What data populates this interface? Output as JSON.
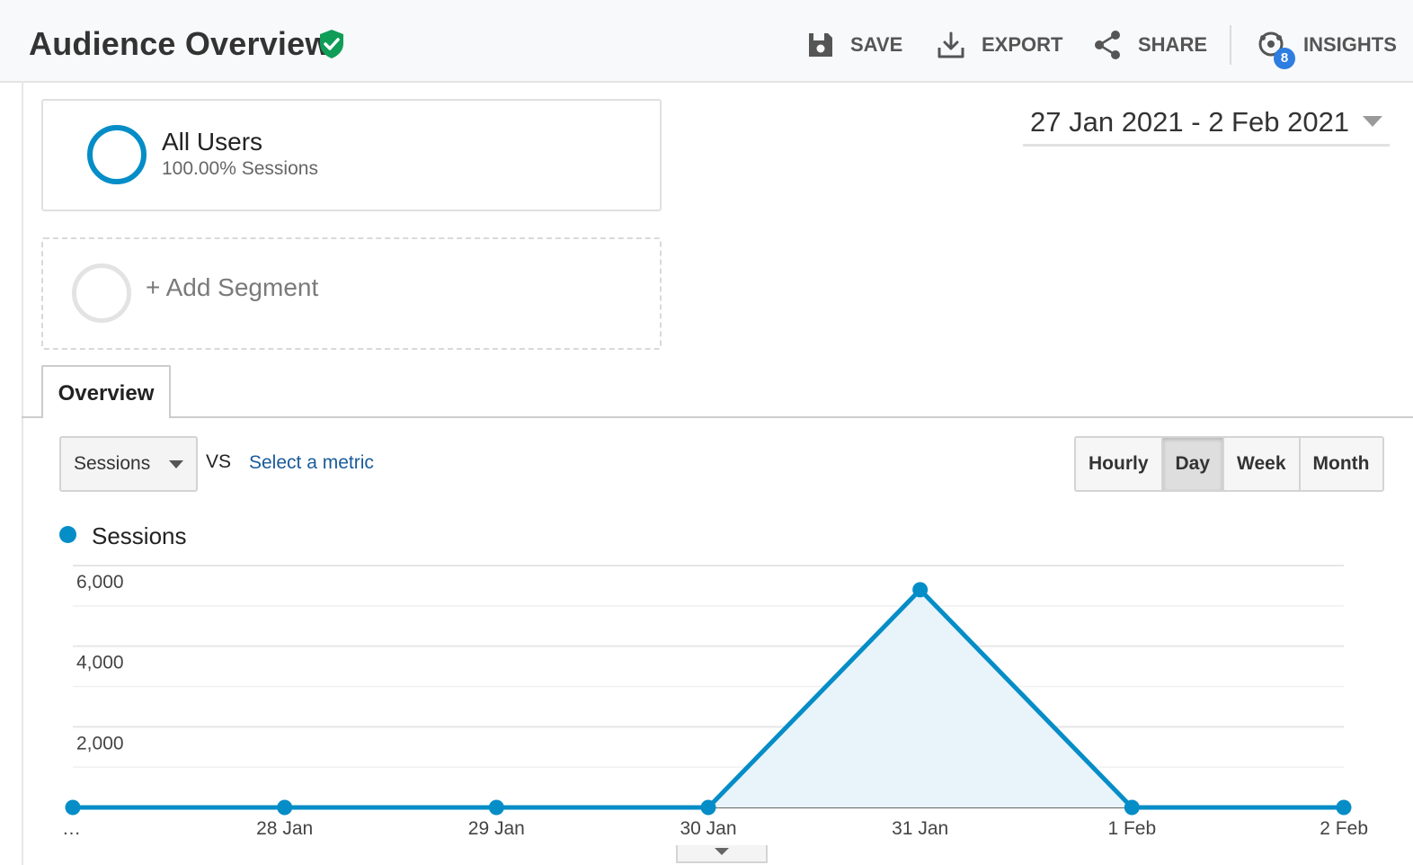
{
  "header": {
    "title": "Audience Overview",
    "actions": [
      {
        "label": "SAVE",
        "icon": "save-icon"
      },
      {
        "label": "EXPORT",
        "icon": "download-icon"
      },
      {
        "label": "SHARE",
        "icon": "share-icon"
      },
      {
        "label": "INSIGHTS",
        "icon": "insights-icon"
      }
    ],
    "insights_badge": "8"
  },
  "segments": {
    "active": {
      "name": "All Users",
      "sub": "100.00% Sessions"
    },
    "add_label": "+ Add Segment"
  },
  "date_range": "27 Jan 2021 - 2 Feb 2021",
  "tabs": [
    {
      "label": "Overview"
    }
  ],
  "controls": {
    "metric": "Sessions",
    "vs": "VS",
    "select_metric": "Select a metric",
    "granularity": [
      "Hourly",
      "Day",
      "Week",
      "Month"
    ],
    "active_granularity": "Day"
  },
  "legend": {
    "label": "Sessions"
  },
  "colors": {
    "series": "#058dc7",
    "fill": "#e8f3fa",
    "link": "#1a5b9a",
    "shield": "#0f9d58",
    "badge": "#2e7de1"
  },
  "chart_data": {
    "type": "area",
    "categories": [
      "…",
      "28 Jan",
      "29 Jan",
      "30 Jan",
      "31 Jan",
      "1 Feb",
      "2 Feb"
    ],
    "series": [
      {
        "name": "Sessions",
        "values": [
          0,
          0,
          0,
          0,
          5400,
          0,
          0
        ]
      }
    ],
    "yticks": [
      "6,000",
      "4,000",
      "2,000"
    ],
    "ylim": [
      0,
      6000
    ],
    "grid": true,
    "legend": "top-left"
  }
}
